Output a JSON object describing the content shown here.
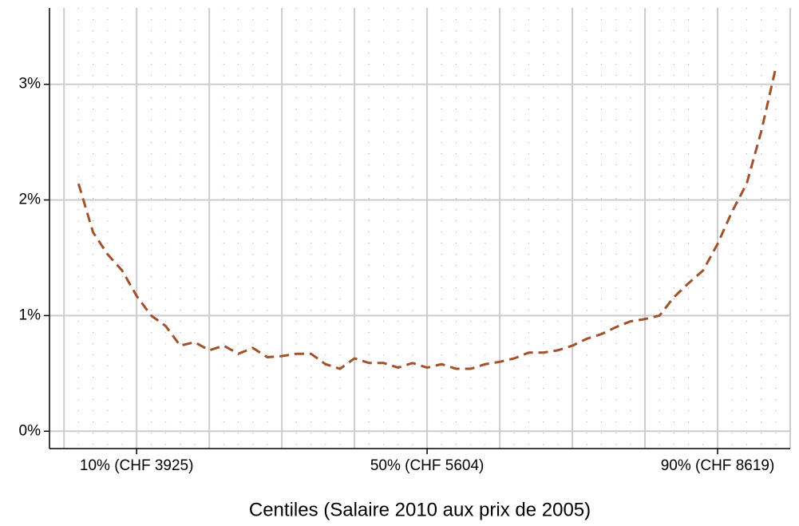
{
  "chart_data": {
    "type": "line",
    "x_label": "Centiles (Salaire 2010 aux prix de 2005)",
    "x": [
      2,
      4,
      6,
      8,
      10,
      12,
      14,
      16,
      18,
      20,
      22,
      24,
      26,
      28,
      30,
      32,
      34,
      36,
      38,
      40,
      42,
      44,
      46,
      48,
      50,
      52,
      54,
      56,
      58,
      60,
      62,
      64,
      66,
      68,
      70,
      72,
      74,
      76,
      78,
      80,
      82,
      84,
      86,
      88,
      90,
      92,
      94,
      96,
      98
    ],
    "series": [
      {
        "color": "#a0522d",
        "values": [
          2.14,
          1.72,
          1.53,
          1.39,
          1.17,
          1.0,
          0.91,
          0.74,
          0.77,
          0.7,
          0.74,
          0.67,
          0.72,
          0.64,
          0.65,
          0.67,
          0.67,
          0.58,
          0.54,
          0.63,
          0.59,
          0.59,
          0.55,
          0.59,
          0.55,
          0.58,
          0.54,
          0.54,
          0.58,
          0.6,
          0.63,
          0.68,
          0.68,
          0.7,
          0.74,
          0.8,
          0.84,
          0.9,
          0.95,
          0.97,
          1.0,
          1.16,
          1.28,
          1.39,
          1.62,
          1.9,
          2.14,
          2.59,
          3.14
        ]
      }
    ],
    "xlim": [
      -2,
      100
    ],
    "ylim": [
      -0.15,
      3.66
    ],
    "xticks": [
      {
        "value": 10,
        "label": "10% (CHF 3925)"
      },
      {
        "value": 50,
        "label": "50% (CHF 5604)"
      },
      {
        "value": 90,
        "label": "90% (CHF 8619)"
      }
    ],
    "x_major_grid": [
      0,
      10,
      20,
      30,
      40,
      50,
      60,
      70,
      80,
      90,
      100
    ],
    "x_minor_grid_step": 2,
    "yticks": [
      {
        "value": 0,
        "label": "0%"
      },
      {
        "value": 1,
        "label": "1%"
      },
      {
        "value": 2,
        "label": "2%"
      },
      {
        "value": 3,
        "label": "3%"
      }
    ],
    "grid": true,
    "dashed": true
  }
}
